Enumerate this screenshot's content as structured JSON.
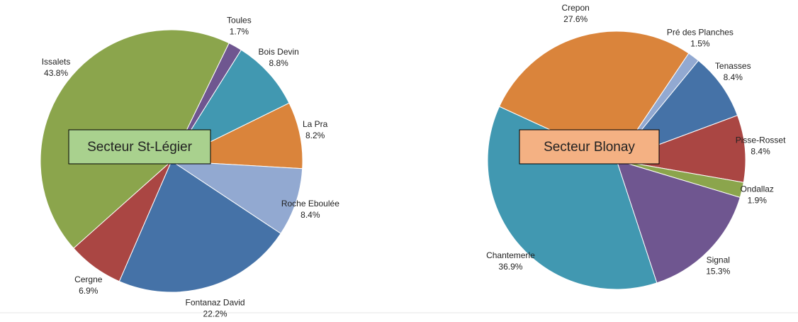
{
  "chart_data": [
    {
      "type": "pie",
      "title": "Secteur St-Légier",
      "title_color": "#a9d18e",
      "start_angle": 26,
      "categories": [
        "Toules",
        "Bois Devin",
        "La Pra",
        "Roche Eboulée",
        "Fontanaz David",
        "Cergne",
        "Issalets"
      ],
      "values": [
        1.7,
        8.8,
        8.2,
        8.4,
        22.2,
        6.9,
        43.8
      ],
      "value_labels": [
        "1.7%",
        "8.8%",
        "8.2%",
        "8.4%",
        "22.2%",
        "6.9%",
        "43.8%"
      ],
      "colors": [
        "#6f5690",
        "#4198b1",
        "#da843b",
        "#92a9d1",
        "#4572a7",
        "#aa4643",
        "#8ba54c"
      ]
    },
    {
      "type": "pie",
      "title": "Secteur Blonay",
      "title_color": "#f4b183",
      "start_angle": 34,
      "categories": [
        "Pré des Planches",
        "Tenasses",
        "Pisse-Rosset",
        "Ondallaz",
        "Signal",
        "Chantemerle",
        "Crepon"
      ],
      "values": [
        1.5,
        8.4,
        8.4,
        1.9,
        15.3,
        36.9,
        27.6
      ],
      "value_labels": [
        "1.5%",
        "8.4%",
        "8.4%",
        "1.9%",
        "15.3%",
        "36.9%",
        "27.6%"
      ],
      "colors": [
        "#92a9d1",
        "#4572a7",
        "#aa4643",
        "#8ba54c",
        "#6f5690",
        "#4198b1",
        "#da843b"
      ]
    }
  ]
}
